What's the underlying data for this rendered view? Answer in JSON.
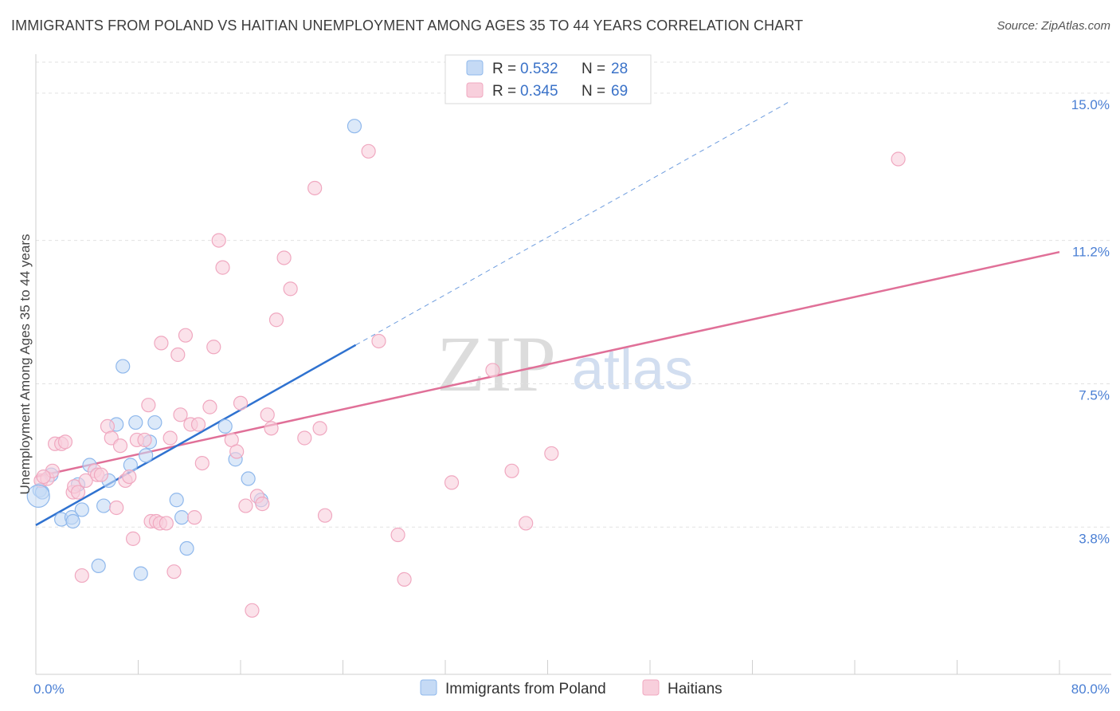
{
  "title": "IMMIGRANTS FROM POLAND VS HAITIAN UNEMPLOYMENT AMONG AGES 35 TO 44 YEARS CORRELATION CHART",
  "source": "Source: ZipAtlas.com",
  "watermark": {
    "zip": "ZIP",
    "atlas": "atlas"
  },
  "chart_data": {
    "type": "scatter",
    "xlabel": "",
    "ylabel": "Unemployment Among Ages 35 to 44 years",
    "xlim": [
      0,
      80
    ],
    "ylim": [
      0,
      15.8
    ],
    "x_tick_labels": [
      {
        "v": 0,
        "label": "0.0%"
      },
      {
        "v": 80,
        "label": "80.0%"
      }
    ],
    "y_ticks": [
      {
        "v": 3.8,
        "label": "3.8%"
      },
      {
        "v": 7.5,
        "label": "7.5%"
      },
      {
        "v": 11.2,
        "label": "11.2%"
      },
      {
        "v": 15.0,
        "label": "15.0%"
      }
    ],
    "legend": [
      {
        "r_label": "R =",
        "r": "0.532",
        "n_label": "N =",
        "n": "28"
      },
      {
        "r_label": "R =",
        "r": "0.345",
        "n_label": "N =",
        "n": "69"
      }
    ],
    "series": [
      {
        "name": "Immigrants from Poland",
        "color": "#8fb8ec",
        "fill": "#c5daf5",
        "line_color": "#2f72d0",
        "trend": {
          "x0": 0,
          "y0": 3.85,
          "x1": 25,
          "y1": 8.5,
          "dash_x1": 59,
          "dash_y1": 14.8
        },
        "points": [
          [
            0.3,
            4.75
          ],
          [
            0.5,
            4.7
          ],
          [
            1.2,
            5.15
          ],
          [
            2,
            4.0
          ],
          [
            2.8,
            4.05
          ],
          [
            2.9,
            3.95
          ],
          [
            3.3,
            4.9
          ],
          [
            3.6,
            4.25
          ],
          [
            4.2,
            5.4
          ],
          [
            4.9,
            2.8
          ],
          [
            5.3,
            4.35
          ],
          [
            5.7,
            5.0
          ],
          [
            6.3,
            6.45
          ],
          [
            6.8,
            7.95
          ],
          [
            7.4,
            5.4
          ],
          [
            7.8,
            6.5
          ],
          [
            8.2,
            2.6
          ],
          [
            8.6,
            5.65
          ],
          [
            8.9,
            6.0
          ],
          [
            9.3,
            6.5
          ],
          [
            11,
            4.5
          ],
          [
            11.4,
            4.05
          ],
          [
            11.8,
            3.25
          ],
          [
            14.8,
            6.4
          ],
          [
            15.6,
            5.55
          ],
          [
            16.6,
            5.05
          ],
          [
            17.6,
            4.5
          ],
          [
            24.9,
            14.15
          ]
        ]
      },
      {
        "name": "Haitians",
        "color": "#f0a8c0",
        "fill": "#f8cfdc",
        "line_color": "#e07098",
        "trend": {
          "x0": 0,
          "y0": 5.1,
          "x1": 80,
          "y1": 10.9
        },
        "points": [
          [
            0.4,
            5.0
          ],
          [
            0.9,
            5.05
          ],
          [
            1.3,
            5.25
          ],
          [
            1.5,
            5.95
          ],
          [
            2,
            5.95
          ],
          [
            2.3,
            6.0
          ],
          [
            2.9,
            4.7
          ],
          [
            3,
            4.85
          ],
          [
            3.3,
            4.7
          ],
          [
            3.6,
            2.55
          ],
          [
            3.9,
            5.0
          ],
          [
            4.6,
            5.25
          ],
          [
            4.8,
            5.15
          ],
          [
            5.1,
            5.15
          ],
          [
            5.6,
            6.4
          ],
          [
            5.9,
            6.1
          ],
          [
            6.3,
            4.3
          ],
          [
            6.6,
            5.9
          ],
          [
            7,
            5.0
          ],
          [
            7.3,
            5.1
          ],
          [
            7.6,
            3.5
          ],
          [
            7.9,
            6.05
          ],
          [
            8.5,
            6.05
          ],
          [
            8.8,
            6.95
          ],
          [
            9,
            3.95
          ],
          [
            9.4,
            3.95
          ],
          [
            9.7,
            3.9
          ],
          [
            9.8,
            8.55
          ],
          [
            10.2,
            3.9
          ],
          [
            10.5,
            6.1
          ],
          [
            10.8,
            2.65
          ],
          [
            11.1,
            8.25
          ],
          [
            11.3,
            6.7
          ],
          [
            11.7,
            8.75
          ],
          [
            12.1,
            6.45
          ],
          [
            12.4,
            4.05
          ],
          [
            12.7,
            6.45
          ],
          [
            13,
            5.45
          ],
          [
            13.6,
            6.9
          ],
          [
            13.9,
            8.45
          ],
          [
            14.3,
            11.2
          ],
          [
            14.6,
            10.5
          ],
          [
            15.3,
            6.05
          ],
          [
            15.7,
            5.75
          ],
          [
            16,
            7.0
          ],
          [
            16.4,
            4.35
          ],
          [
            16.9,
            1.65
          ],
          [
            17.3,
            4.6
          ],
          [
            17.7,
            4.4
          ],
          [
            18.1,
            6.7
          ],
          [
            18.4,
            6.35
          ],
          [
            18.8,
            9.15
          ],
          [
            19.4,
            10.75
          ],
          [
            19.9,
            9.95
          ],
          [
            21,
            6.1
          ],
          [
            21.8,
            12.55
          ],
          [
            22.2,
            6.35
          ],
          [
            22.6,
            4.1
          ],
          [
            26,
            13.5
          ],
          [
            26.8,
            8.6
          ],
          [
            28.3,
            3.6
          ],
          [
            28.8,
            2.45
          ],
          [
            32.5,
            4.95
          ],
          [
            35.7,
            7.85
          ],
          [
            37.2,
            5.25
          ],
          [
            38.3,
            3.9
          ],
          [
            40.3,
            5.7
          ],
          [
            67.4,
            13.3
          ],
          [
            0.6,
            5.1
          ]
        ]
      }
    ]
  }
}
